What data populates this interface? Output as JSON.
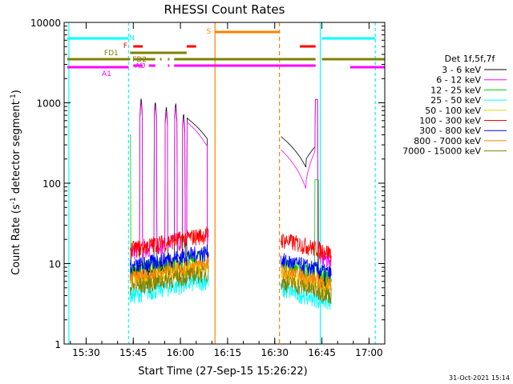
{
  "chart_data": {
    "type": "line",
    "title": "RHESSI Count Rates",
    "xlabel": "Start Time (27-Sep-15 15:26:22)",
    "ylabel": "Count Rate (s",
    "ylabel_sup": "-1",
    "ylabel_tail": " detector segment",
    "ylabel_sup2": "-1",
    "ylabel_close": ")",
    "y_scale": "log",
    "ylim": [
      1,
      10000
    ],
    "xlim": [
      "15:23",
      "17:05"
    ],
    "x_ticks": [
      "15:30",
      "15:45",
      "16:00",
      "16:15",
      "16:30",
      "16:45",
      "17:00"
    ],
    "x_tick_minutes": [
      30,
      45,
      60,
      75,
      90,
      105,
      120
    ],
    "y_ticks": [
      "1",
      "10",
      "100",
      "1000",
      "10000"
    ],
    "y_tick_values": [
      1,
      10,
      100,
      1000,
      10000
    ],
    "legend_title": "Det 1f,5f,7f",
    "legend_position": "right",
    "series": [
      {
        "name": "3 - 6 keV",
        "color": "#000000",
        "quiet": 7.5,
        "post": 8.5
      },
      {
        "name": "6 - 12 keV",
        "color": "#ff00ff",
        "quiet": 14,
        "post": 16
      },
      {
        "name": "12 - 25 keV",
        "color": "#00cc00",
        "quiet": 8,
        "post": 10
      },
      {
        "name": "25 - 50 keV",
        "color": "#00ffff",
        "quiet": 4,
        "post": 4.8
      },
      {
        "name": "50 - 100 keV",
        "color": "#dddd00",
        "quiet": 6,
        "post": 7
      },
      {
        "name": "100 - 300 keV",
        "color": "#ff0000",
        "quiet": 15,
        "post": 20
      },
      {
        "name": "300 - 800 keV",
        "color": "#0000ff",
        "quiet": 9,
        "post": 11
      },
      {
        "name": "800 - 7000 keV",
        "color": "#ff8000",
        "quiet": 6.5,
        "post": 8
      },
      {
        "name": "7000 - 15000 keV",
        "color": "#808000",
        "quiet": 5,
        "post": 6
      }
    ],
    "flags": [
      {
        "label": "N",
        "color": "#00ffff"
      },
      {
        "label": "F",
        "color": "#ff0000"
      },
      {
        "label": "FD1",
        "color": "#808000"
      },
      {
        "label": "FD2",
        "color": "#808000"
      },
      {
        "label": "AD",
        "color": "#ff00ff"
      },
      {
        "label": "A1",
        "color": "#ff00ff"
      },
      {
        "label": "S",
        "color": "#ff8000"
      }
    ],
    "footer": "31-Oct-2021 15:14"
  }
}
